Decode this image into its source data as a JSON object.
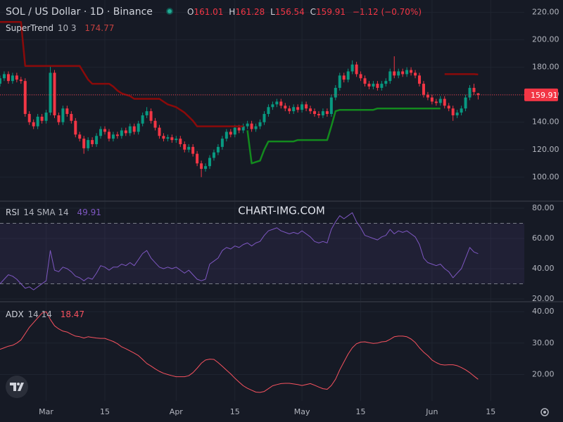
{
  "chart_data": {
    "type": "candlestick",
    "title": "SOL / US Dollar · 1D · Binance",
    "ohlc_labels": [
      "O",
      "H",
      "L",
      "C"
    ],
    "change": "−1.12 (−0.70%)",
    "watermark": "CHART-IMG.COM",
    "up_color": "#089981",
    "down_color": "#f23645",
    "xlim": [
      0,
      125
    ],
    "xticks": [
      {
        "value": 11,
        "label": "Mar"
      },
      {
        "value": 25,
        "label": "15"
      },
      {
        "value": 42,
        "label": "Apr"
      },
      {
        "value": 56,
        "label": "15"
      },
      {
        "value": 72,
        "label": "May"
      },
      {
        "value": 86,
        "label": "15"
      },
      {
        "value": 103,
        "label": "Jun"
      },
      {
        "value": 117,
        "label": "15"
      }
    ],
    "ylim": [
      83,
      229
    ],
    "yticks": [
      {
        "value": 100,
        "label": "100.00"
      },
      {
        "value": 120,
        "label": "120.00"
      },
      {
        "value": 140,
        "label": "140.00"
      },
      {
        "value": 160,
        "label": "160.00"
      },
      {
        "value": 180,
        "label": "180.00"
      },
      {
        "value": 200,
        "label": "200.00"
      },
      {
        "value": 220,
        "label": "220.00"
      }
    ],
    "candles": [
      [
        168,
        174,
        166,
        172
      ],
      [
        172,
        177,
        170,
        175
      ],
      [
        175,
        177,
        168,
        170
      ],
      [
        170,
        176,
        168,
        174
      ],
      [
        174,
        176,
        169,
        171
      ],
      [
        171,
        173,
        168,
        170
      ],
      [
        170,
        172,
        144,
        146
      ],
      [
        146,
        148,
        138,
        140
      ],
      [
        140,
        142,
        135,
        137
      ],
      [
        137,
        146,
        135,
        144
      ],
      [
        144,
        146,
        139,
        141
      ],
      [
        141,
        149,
        139,
        147
      ],
      [
        147,
        181,
        145,
        176
      ],
      [
        176,
        178,
        143,
        145
      ],
      [
        145,
        147,
        138,
        140
      ],
      [
        140,
        152,
        138,
        150
      ],
      [
        150,
        152,
        144,
        146
      ],
      [
        146,
        148,
        139,
        141
      ],
      [
        141,
        143,
        129,
        131
      ],
      [
        131,
        133,
        126,
        128
      ],
      [
        128,
        130,
        117,
        121
      ],
      [
        121,
        129,
        119,
        127
      ],
      [
        127,
        129,
        122,
        124
      ],
      [
        124,
        132,
        122,
        130
      ],
      [
        130,
        137,
        128,
        135
      ],
      [
        135,
        137,
        131,
        133
      ],
      [
        133,
        135,
        126,
        128
      ],
      [
        128,
        133,
        126,
        131
      ],
      [
        131,
        133,
        128,
        130
      ],
      [
        130,
        136,
        128,
        134
      ],
      [
        134,
        136,
        130,
        132
      ],
      [
        132,
        139,
        130,
        137
      ],
      [
        137,
        139,
        131,
        133
      ],
      [
        133,
        141,
        131,
        139
      ],
      [
        139,
        147,
        137,
        145
      ],
      [
        145,
        151,
        143,
        148
      ],
      [
        148,
        150,
        139,
        141
      ],
      [
        141,
        143,
        134,
        136
      ],
      [
        136,
        138,
        128,
        130
      ],
      [
        130,
        132,
        126,
        128
      ],
      [
        128,
        131,
        126,
        129
      ],
      [
        129,
        131,
        125,
        127
      ],
      [
        127,
        130,
        125,
        128
      ],
      [
        128,
        130,
        122,
        124
      ],
      [
        124,
        126,
        118,
        120
      ],
      [
        120,
        124,
        118,
        122
      ],
      [
        122,
        124,
        115,
        117
      ],
      [
        117,
        119,
        108,
        110
      ],
      [
        110,
        112,
        100,
        106
      ],
      [
        106,
        110,
        104,
        108
      ],
      [
        108,
        116,
        106,
        114
      ],
      [
        114,
        120,
        112,
        118
      ],
      [
        118,
        124,
        116,
        122
      ],
      [
        122,
        130,
        120,
        128
      ],
      [
        128,
        135,
        126,
        133
      ],
      [
        133,
        135,
        129,
        131
      ],
      [
        131,
        138,
        129,
        136
      ],
      [
        136,
        138,
        132,
        134
      ],
      [
        134,
        139,
        132,
        137
      ],
      [
        137,
        141,
        135,
        139
      ],
      [
        139,
        141,
        133,
        135
      ],
      [
        135,
        139,
        133,
        137
      ],
      [
        137,
        142,
        135,
        140
      ],
      [
        140,
        148,
        138,
        146
      ],
      [
        146,
        153,
        144,
        151
      ],
      [
        151,
        155,
        149,
        153
      ],
      [
        153,
        157,
        151,
        155
      ],
      [
        155,
        157,
        150,
        152
      ],
      [
        152,
        154,
        148,
        150
      ],
      [
        150,
        152,
        146,
        148
      ],
      [
        148,
        153,
        146,
        151
      ],
      [
        151,
        153,
        147,
        149
      ],
      [
        149,
        155,
        147,
        153
      ],
      [
        153,
        155,
        148,
        150
      ],
      [
        150,
        152,
        146,
        148
      ],
      [
        148,
        150,
        144,
        146
      ],
      [
        146,
        148,
        143,
        145
      ],
      [
        145,
        150,
        143,
        148
      ],
      [
        148,
        150,
        144,
        146
      ],
      [
        146,
        160,
        144,
        158
      ],
      [
        158,
        167,
        156,
        165
      ],
      [
        165,
        176,
        163,
        174
      ],
      [
        174,
        176,
        169,
        171
      ],
      [
        171,
        179,
        169,
        177
      ],
      [
        177,
        185,
        175,
        182
      ],
      [
        182,
        184,
        173,
        175
      ],
      [
        175,
        177,
        170,
        172
      ],
      [
        172,
        174,
        166,
        168
      ],
      [
        168,
        170,
        164,
        166
      ],
      [
        166,
        170,
        164,
        168
      ],
      [
        168,
        170,
        163,
        165
      ],
      [
        165,
        170,
        163,
        168
      ],
      [
        168,
        172,
        166,
        170
      ],
      [
        170,
        179,
        168,
        177
      ],
      [
        177,
        188,
        172,
        174
      ],
      [
        174,
        179,
        172,
        177
      ],
      [
        177,
        179,
        173,
        175
      ],
      [
        175,
        180,
        173,
        178
      ],
      [
        178,
        180,
        174,
        176
      ],
      [
        176,
        178,
        172,
        174
      ],
      [
        174,
        176,
        166,
        168
      ],
      [
        168,
        170,
        158,
        160
      ],
      [
        160,
        162,
        156,
        158
      ],
      [
        158,
        160,
        153,
        155
      ],
      [
        155,
        157,
        152,
        154
      ],
      [
        154,
        159,
        152,
        157
      ],
      [
        157,
        159,
        150,
        152
      ],
      [
        152,
        154,
        148,
        150
      ],
      [
        150,
        152,
        141,
        145
      ],
      [
        145,
        149,
        143,
        147
      ],
      [
        147,
        152,
        145,
        150
      ],
      [
        150,
        160,
        148,
        158
      ],
      [
        158,
        167,
        156,
        165
      ],
      [
        165,
        168,
        160,
        162
      ],
      [
        161.01,
        161.28,
        156.54,
        159.91
      ]
    ],
    "supertrend": {
      "label": "SuperTrend",
      "params": "10 3",
      "up_color": "#138a1e",
      "down_color": "#8b0a0a",
      "down": [
        213,
        213,
        213,
        213,
        213,
        213,
        181,
        181,
        181,
        181,
        181,
        181,
        181,
        181,
        181,
        181,
        181,
        181,
        181,
        181,
        176,
        171,
        168,
        168,
        168,
        168,
        168,
        166,
        163,
        161,
        160,
        159,
        157,
        157,
        157,
        157,
        157,
        157,
        157,
        155,
        153,
        152,
        151,
        149,
        147,
        144,
        141,
        137,
        137,
        137,
        137,
        137,
        137,
        137,
        137,
        137,
        137,
        137,
        137,
        null,
        null,
        null,
        null,
        null,
        null,
        null,
        null,
        null,
        null,
        null,
        null,
        null,
        null,
        null,
        null,
        null,
        null,
        null,
        null,
        null,
        null,
        null,
        null,
        null,
        null,
        null,
        null,
        null,
        null,
        null,
        null,
        null,
        null,
        null,
        null,
        null,
        null,
        null,
        null,
        null,
        null,
        null,
        null,
        null,
        null,
        null,
        175,
        175,
        175,
        175,
        175,
        175,
        175,
        175,
        174.77
      ],
      "up": [
        null,
        null,
        null,
        null,
        null,
        null,
        null,
        null,
        null,
        null,
        null,
        null,
        null,
        null,
        null,
        null,
        null,
        null,
        null,
        null,
        null,
        null,
        null,
        null,
        null,
        null,
        null,
        null,
        null,
        null,
        null,
        null,
        null,
        null,
        null,
        null,
        null,
        null,
        null,
        null,
        null,
        null,
        null,
        null,
        null,
        null,
        null,
        null,
        null,
        null,
        null,
        null,
        null,
        null,
        null,
        null,
        null,
        null,
        null,
        134,
        110,
        111,
        112,
        120,
        126,
        126,
        126,
        126,
        126,
        126,
        126,
        127,
        127,
        127,
        127,
        127,
        127,
        127,
        127,
        137,
        148,
        149,
        149,
        149,
        149,
        149,
        149,
        149,
        149,
        149,
        150,
        150,
        150,
        150,
        150,
        150,
        150,
        150,
        150,
        150,
        150,
        150,
        150,
        150,
        150,
        150,
        null,
        null,
        null,
        null,
        null,
        null,
        null,
        null,
        null
      ]
    },
    "rsi": {
      "label": "RSI",
      "params": "14 SMA 14",
      "color": "#7e57c2",
      "ylim": [
        18.6,
        83.7
      ],
      "yticks": [
        {
          "value": 20,
          "label": "20.00"
        },
        {
          "value": 40,
          "label": "40.00"
        },
        {
          "value": 60,
          "label": "60.00"
        },
        {
          "value": 80,
          "label": "80.00"
        }
      ],
      "bands": [
        70,
        30
      ],
      "values": [
        30,
        33,
        36,
        35,
        33,
        30,
        27,
        28,
        26,
        28,
        30,
        32,
        52,
        39,
        38,
        41,
        40,
        38,
        35,
        34,
        32,
        34,
        33,
        37,
        42,
        41,
        39,
        41,
        41,
        43,
        42,
        44,
        42,
        46,
        50,
        52,
        47,
        44,
        41,
        40,
        41,
        40,
        41,
        39,
        37,
        39,
        36,
        33,
        32,
        33,
        43,
        45,
        47,
        52,
        54,
        53,
        55,
        54,
        56,
        57,
        55,
        57,
        58,
        62,
        65,
        66,
        67,
        65,
        64,
        63,
        64,
        63,
        65,
        63,
        61,
        58,
        57,
        58,
        57,
        66,
        71,
        75,
        73,
        75,
        77,
        71,
        67,
        62,
        61,
        60,
        59,
        61,
        62,
        66,
        63,
        65,
        64,
        65,
        63,
        61,
        56,
        47,
        44,
        43,
        42,
        43,
        40,
        38,
        34,
        37,
        40,
        47,
        54,
        51,
        49.91
      ]
    },
    "adx": {
      "label": "ADX",
      "params": "14 14",
      "color": "#f7525f",
      "ylim": [
        11.6,
        42.7
      ],
      "yticks": [
        {
          "value": 20,
          "label": "20.00"
        },
        {
          "value": 30,
          "label": "30.00"
        },
        {
          "value": 40,
          "label": "40.00"
        }
      ],
      "values": [
        28,
        28.5,
        29,
        29.3,
        30,
        31,
        33,
        35,
        36.5,
        38,
        39.5,
        40,
        37.5,
        35.5,
        34.5,
        33.8,
        33.5,
        32.8,
        32.2,
        32,
        31.6,
        32,
        31.8,
        31.6,
        31.5,
        31.5,
        31,
        30.5,
        29.8,
        28.8,
        28.2,
        27.5,
        26.8,
        26,
        24.8,
        23.5,
        22.7,
        21.8,
        21,
        20.4,
        20,
        19.6,
        19.3,
        19.3,
        19.3,
        19.6,
        20.6,
        22,
        23.6,
        24.6,
        24.9,
        24.8,
        23.8,
        22.6,
        21.4,
        20.2,
        18.8,
        17.6,
        16.4,
        15.6,
        15,
        14.4,
        14.3,
        14.6,
        15.5,
        16.4,
        16.8,
        17.1,
        17.2,
        17.2,
        17,
        16.8,
        16.5,
        16.8,
        17.1,
        16.6,
        16,
        15.5,
        15.3,
        16.5,
        18.5,
        21.5,
        24,
        26.5,
        28.5,
        29.8,
        30.3,
        30.4,
        30.1,
        29.9,
        30,
        30.4,
        30.5,
        31.2,
        32,
        32.2,
        32.2,
        32,
        31.3,
        30.2,
        28.5,
        27.1,
        26,
        24.6,
        23.8,
        23.2,
        23,
        23.1,
        23.1,
        22.8,
        22.2,
        21.5,
        20.6,
        19.5,
        18.47
      ]
    }
  }
}
